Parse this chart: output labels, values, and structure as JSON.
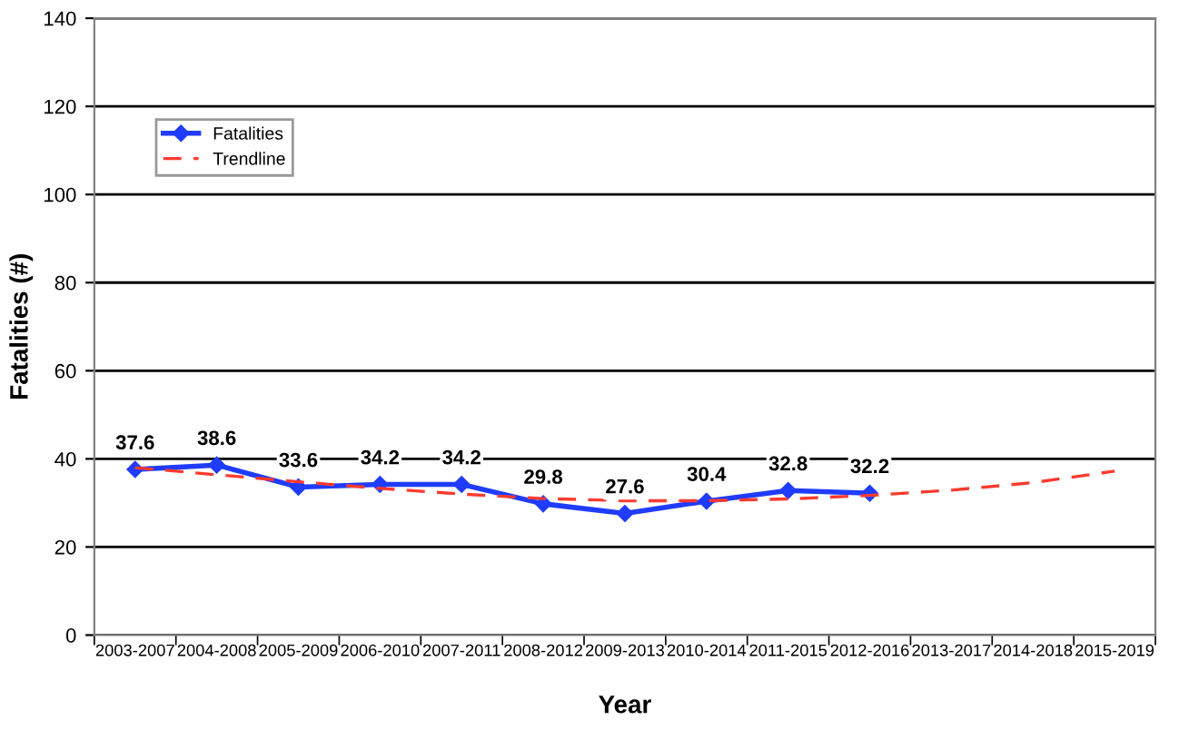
{
  "chart_data": {
    "type": "line",
    "xlabel": "Year",
    "ylabel": "Fatalities (#)",
    "categories": [
      "2003-2007",
      "2004-2008",
      "2005-2009",
      "2006-2010",
      "2007-2011",
      "2008-2012",
      "2009-2013",
      "2010-2014",
      "2011-2015",
      "2012-2016",
      "2013-2017",
      "2014-2018",
      "2015-2019"
    ],
    "series": [
      {
        "name": "Fatalities",
        "color": "#1f3cff",
        "marker": "diamond",
        "line_style": "solid",
        "data_labels": true,
        "values": [
          37.6,
          38.6,
          33.6,
          34.2,
          34.2,
          29.8,
          27.6,
          30.4,
          32.8,
          32.2,
          null,
          null,
          null
        ]
      },
      {
        "name": "Trendline",
        "color": "#ff3b2f",
        "marker": "none",
        "line_style": "dashed",
        "values": [
          38.0,
          36.4,
          34.8,
          33.3,
          32.0,
          31.0,
          30.5,
          30.5,
          30.9,
          31.7,
          32.9,
          34.6,
          37.2
        ]
      }
    ],
    "ylim": [
      0,
      140
    ],
    "yticks": [
      0,
      20,
      40,
      60,
      80,
      100,
      120,
      140
    ],
    "grid": "y",
    "legend": "top left"
  }
}
